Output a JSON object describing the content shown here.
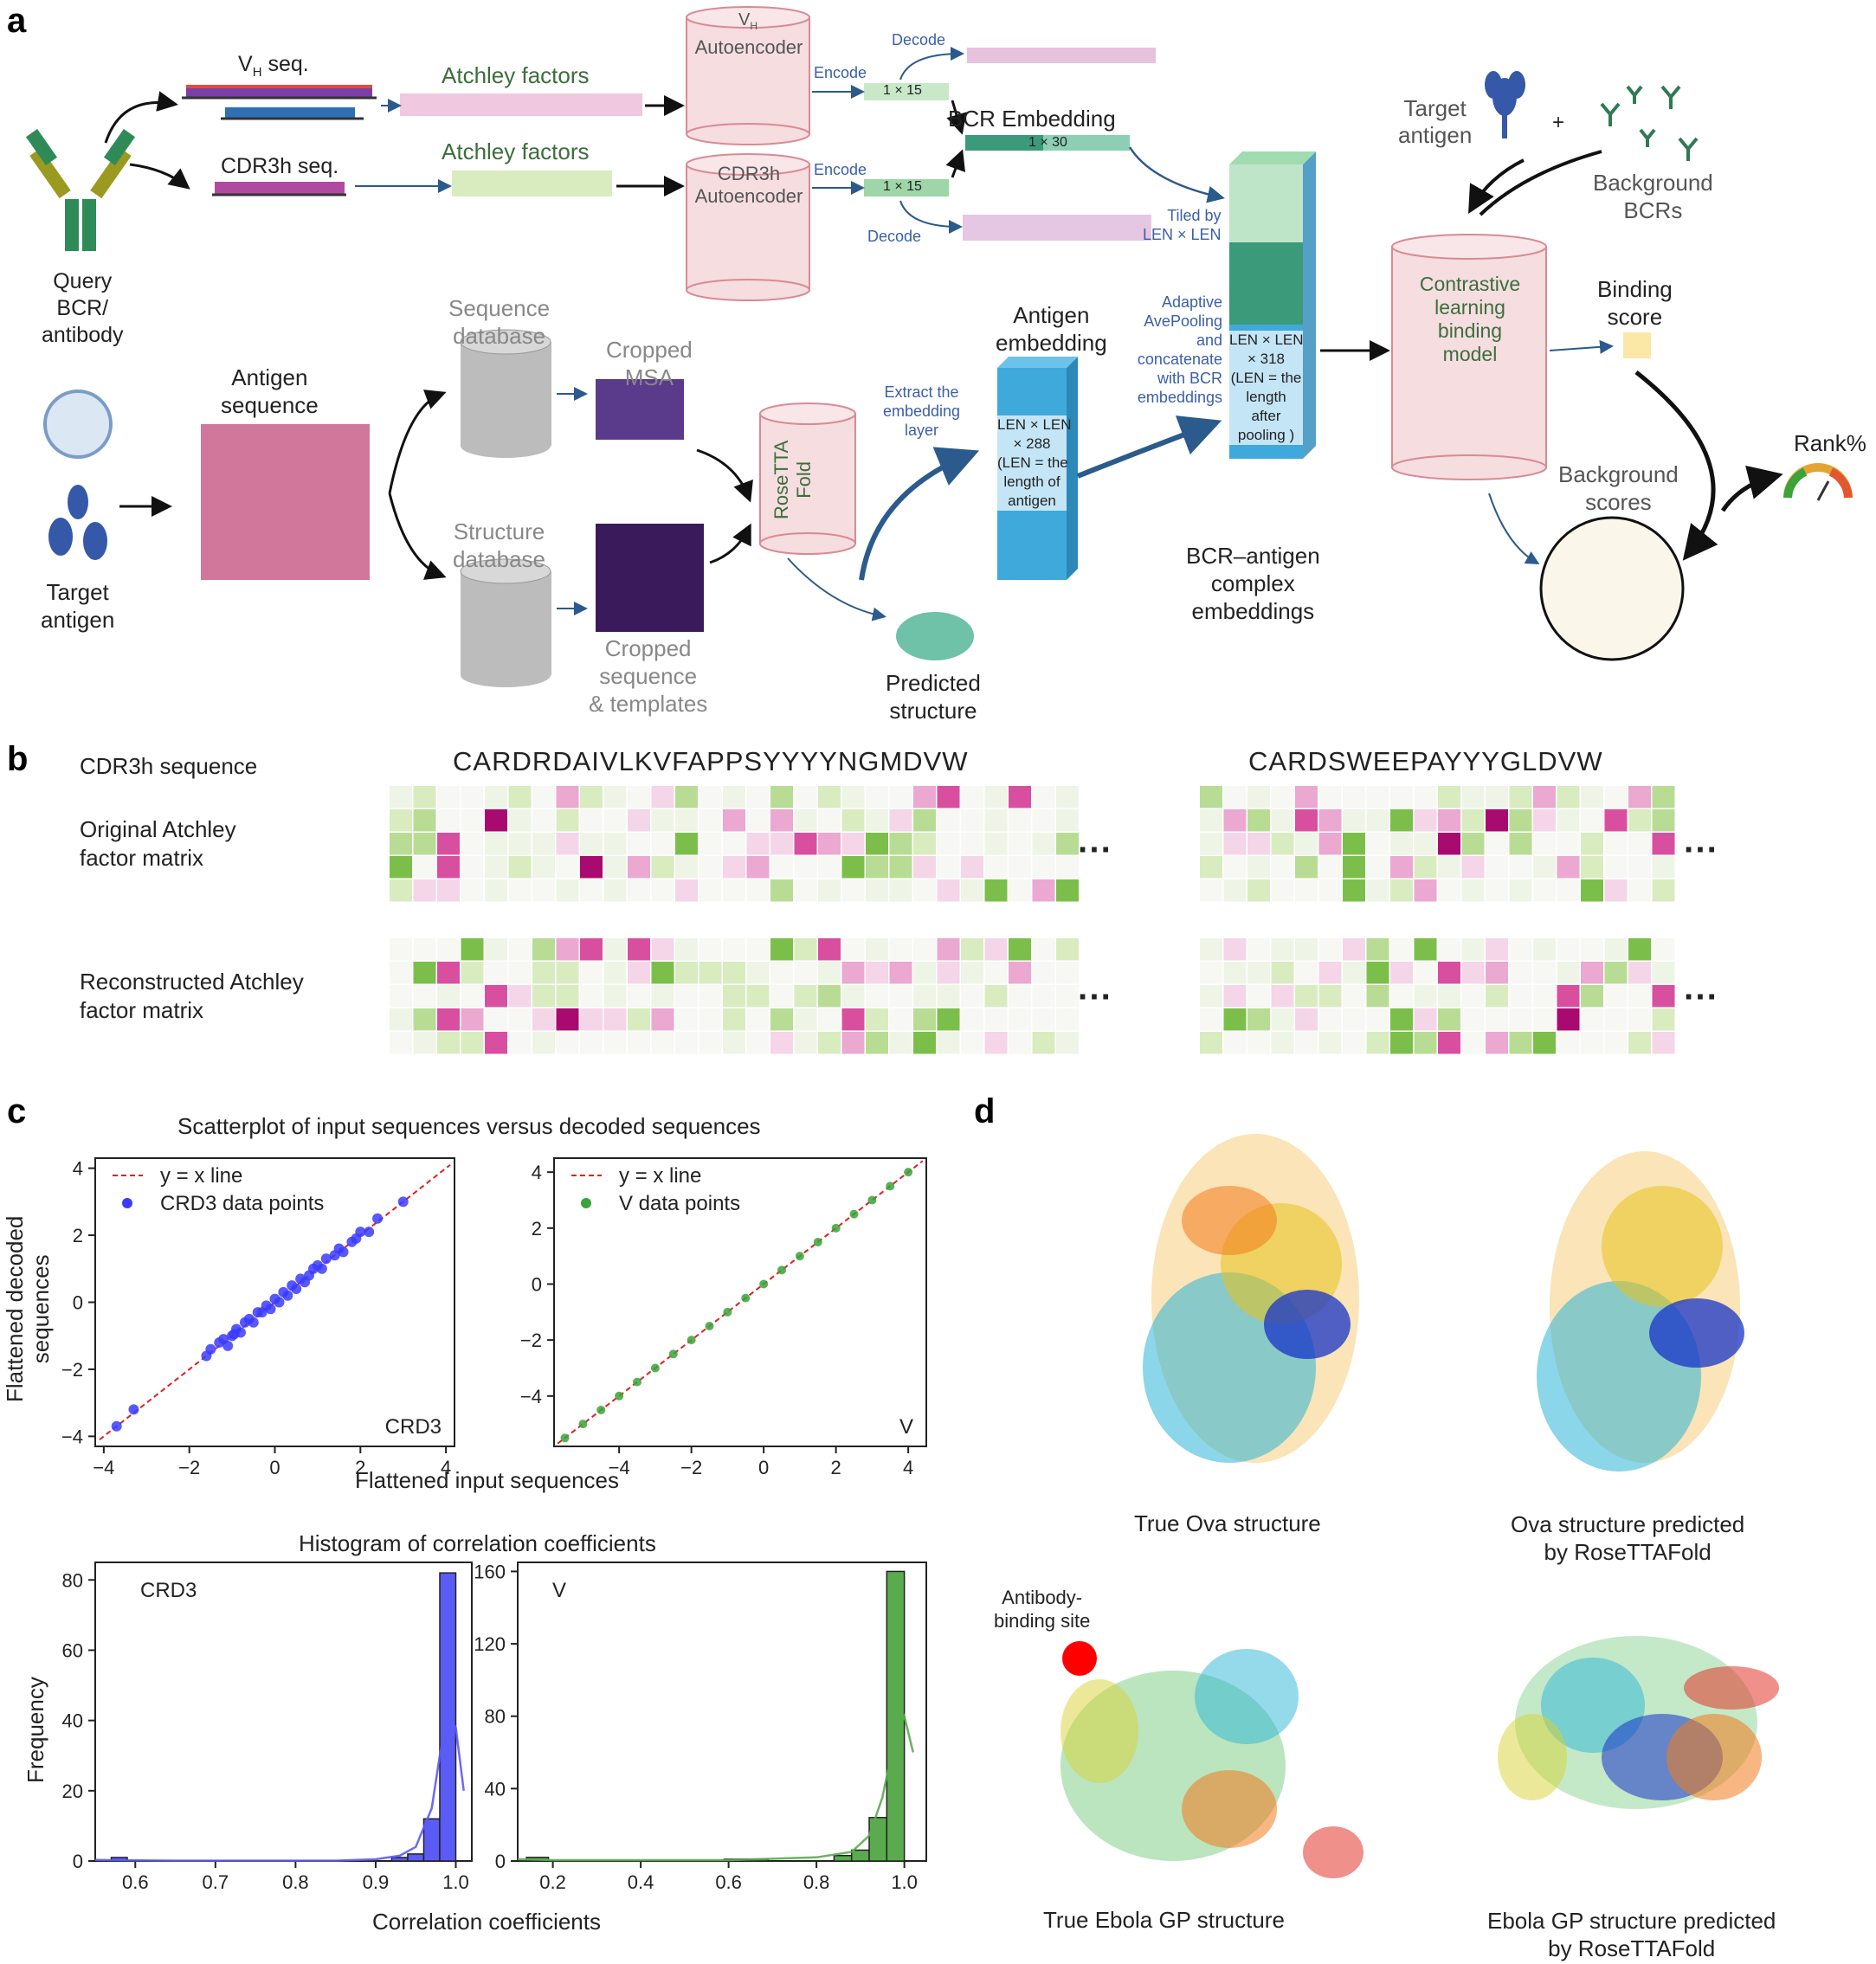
{
  "panels": {
    "a": "a",
    "b": "b",
    "c": "c",
    "d": "d"
  },
  "panel_a": {
    "query_label": "Query\nBCR/\nantibody",
    "vh_seq_label": "V",
    "vh_seq_sub": "H",
    "vh_seq_suffix": " seq.",
    "cdr3h_seq_label": "CDR3h seq.",
    "atchley_1": "Atchley factors",
    "atchley_2": "Atchley factors",
    "vh_auto_top": "V",
    "vh_auto_sub": "H",
    "vh_auto_label": "Autoencoder",
    "cdr3h_auto_label": "CDR3h\nAutoencoder",
    "encode_1": "Encode",
    "encode_2": "Encode",
    "decode_1": "Decode",
    "decode_2": "Decode",
    "dim_1x15_a": "1 × 15",
    "dim_1x15_b": "1 × 15",
    "bcr_embedding": "BCR Embedding",
    "dim_1x30": "1 × 30",
    "tiled_label": "Tiled by\nLEN × LEN",
    "target_antigen_right": "Target\nantigen",
    "background_bcrs": "Background\nBCRs",
    "contrastive_label": "Contrastive\nlearning\nbinding\nmodel",
    "binding_score": "Binding\nscore",
    "rank": "Rank%",
    "background_scores": "Background\nscores",
    "antigen_sequence": "Antigen\nsequence",
    "target_antigen_left": "Target\nantigen",
    "sequence_db": "Sequence\ndatabase",
    "structure_db": "Structure\ndatabase",
    "cropped_msa": "Cropped\nMSA",
    "cropped_seq": "Cropped\nsequence\n& templates",
    "rosetta": "RoseTTA\nFold",
    "predicted_structure": "Predicted\nstructure",
    "extract_label": "Extract the\nembedding\nlayer",
    "antigen_embedding": "Antigen\nembedding",
    "antigen_dims": "LEN × LEN\n× 288\n(LEN = the\nlength of\nantigen",
    "adaptive_label": "Adaptive\nAvePooling\nand\nconcatenate\nwith BCR\nembeddings",
    "complex_dims": "LEN × LEN\n× 318\n(LEN = the\nlength\nafter\npooling )",
    "complex_label": "BCR–antigen\ncomplex\nembeddings"
  },
  "panel_b": {
    "cdr3h_label": "CDR3h sequence",
    "seq1": "CARDRDAIVLKVFAPPSYYYYNGMDVW",
    "seq2": "CARDSWEEPAYYYGLDVW",
    "original_label": "Original Atchley\nfactor matrix",
    "reconstructed_label": "Reconstructed Atchley\nfactor matrix",
    "ellipsis": "···"
  },
  "panel_c": {
    "scatter_title": "Scatterplot of input sequences versus decoded sequences",
    "scatter_ylabel": "Flattened decoded\nsequences",
    "scatter_xlabel": "Flattened input sequences",
    "hist_title": "Histogram of correlation coefficients",
    "hist_ylabel": "Frequency",
    "hist_xlabel": "Correlation coefficients"
  },
  "chart_data": [
    {
      "type": "scatter",
      "panel_label": "CRD3",
      "legend": [
        "y = x line",
        "CRD3 data points"
      ],
      "xlim": [
        -4.2,
        4.2
      ],
      "ylim": [
        -4.3,
        4.3
      ],
      "xticks": [
        -4,
        -2,
        0,
        2,
        4
      ],
      "yticks": [
        -4,
        -2,
        0,
        2,
        4
      ],
      "color": "#3b3bff",
      "points": [
        [
          -3.7,
          -3.7
        ],
        [
          -3.3,
          -3.2
        ],
        [
          -1.6,
          -1.6
        ],
        [
          -1.5,
          -1.4
        ],
        [
          -1.2,
          -1.1
        ],
        [
          -1.0,
          -1.0
        ],
        [
          -0.9,
          -0.8
        ],
        [
          -0.8,
          -0.9
        ],
        [
          -0.6,
          -0.5
        ],
        [
          -0.5,
          -0.6
        ],
        [
          -0.4,
          -0.3
        ],
        [
          -0.3,
          -0.3
        ],
        [
          -0.2,
          -0.1
        ],
        [
          -0.1,
          -0.2
        ],
        [
          0.0,
          0.1
        ],
        [
          0.1,
          0.0
        ],
        [
          0.2,
          0.3
        ],
        [
          0.3,
          0.2
        ],
        [
          0.5,
          0.4
        ],
        [
          0.6,
          0.7
        ],
        [
          0.8,
          0.8
        ],
        [
          0.9,
          1.0
        ],
        [
          1.1,
          1.0
        ],
        [
          1.2,
          1.3
        ],
        [
          1.4,
          1.4
        ],
        [
          1.6,
          1.5
        ],
        [
          1.8,
          1.8
        ],
        [
          2.0,
          2.1
        ],
        [
          2.2,
          2.1
        ],
        [
          2.4,
          2.5
        ],
        [
          3.0,
          3.0
        ],
        [
          -1.3,
          -1.2
        ],
        [
          -0.7,
          -0.6
        ],
        [
          0.4,
          0.5
        ],
        [
          1.0,
          1.1
        ],
        [
          1.5,
          1.6
        ],
        [
          -1.1,
          -1.3
        ],
        [
          -0.95,
          -0.95
        ],
        [
          0.7,
          0.6
        ],
        [
          1.9,
          1.9
        ]
      ]
    },
    {
      "type": "scatter",
      "panel_label": "V",
      "legend": [
        "y = x line",
        "V data points"
      ],
      "xlim": [
        -5.8,
        4.5
      ],
      "ylim": [
        -5.8,
        4.5
      ],
      "xticks": [
        -4,
        -2,
        0,
        2,
        4
      ],
      "yticks": [
        -4,
        -2,
        0,
        2,
        4
      ],
      "color": "#3aa33a",
      "points": [
        [
          -5.5,
          -5.5
        ],
        [
          -5.0,
          -5.0
        ],
        [
          -4.5,
          -4.5
        ],
        [
          -4.0,
          -4.0
        ],
        [
          -3.5,
          -3.5
        ],
        [
          -3.0,
          -3.0
        ],
        [
          -2.5,
          -2.5
        ],
        [
          -2.0,
          -2.0
        ],
        [
          -1.5,
          -1.5
        ],
        [
          -1.0,
          -1.0
        ],
        [
          -0.5,
          -0.5
        ],
        [
          0.0,
          0.0
        ],
        [
          0.5,
          0.5
        ],
        [
          1.0,
          1.0
        ],
        [
          1.5,
          1.5
        ],
        [
          2.0,
          2.0
        ],
        [
          2.5,
          2.5
        ],
        [
          3.0,
          3.0
        ],
        [
          3.5,
          3.5
        ],
        [
          4.0,
          4.0
        ]
      ]
    },
    {
      "type": "bar",
      "panel_label": "CRD3",
      "xlim": [
        0.55,
        1.02
      ],
      "ylim": [
        0,
        85
      ],
      "xticks": [
        0.6,
        0.7,
        0.8,
        0.9,
        1.0
      ],
      "yticks": [
        0,
        20,
        40,
        60,
        80
      ],
      "color": "#5b5bf5",
      "bins": [
        [
          0.57,
          0.59,
          1
        ],
        [
          0.9,
          0.92,
          0
        ],
        [
          0.92,
          0.94,
          1
        ],
        [
          0.94,
          0.96,
          2
        ],
        [
          0.96,
          0.98,
          12
        ],
        [
          0.98,
          1.0,
          82
        ]
      ],
      "kde": [
        [
          0.55,
          0.3
        ],
        [
          0.6,
          0.2
        ],
        [
          0.65,
          0.1
        ],
        [
          0.85,
          0.1
        ],
        [
          0.9,
          0.5
        ],
        [
          0.93,
          1.5
        ],
        [
          0.95,
          4
        ],
        [
          0.97,
          15
        ],
        [
          0.98,
          30
        ],
        [
          0.99,
          42
        ],
        [
          1.0,
          38
        ],
        [
          1.01,
          20
        ]
      ]
    },
    {
      "type": "bar",
      "panel_label": "V",
      "xlim": [
        0.12,
        1.05
      ],
      "ylim": [
        0,
        165
      ],
      "xticks": [
        0.2,
        0.4,
        0.6,
        0.8,
        1.0
      ],
      "yticks": [
        0,
        40,
        80,
        120,
        160
      ],
      "color": "#5aab4e",
      "bins": [
        [
          0.14,
          0.19,
          2
        ],
        [
          0.59,
          0.64,
          1
        ],
        [
          0.64,
          0.69,
          1
        ],
        [
          0.84,
          0.88,
          3
        ],
        [
          0.88,
          0.92,
          6
        ],
        [
          0.92,
          0.96,
          24
        ],
        [
          0.96,
          1.0,
          160
        ]
      ],
      "kde": [
        [
          0.12,
          1
        ],
        [
          0.2,
          0.5
        ],
        [
          0.6,
          0.5
        ],
        [
          0.8,
          2
        ],
        [
          0.88,
          5
        ],
        [
          0.92,
          14
        ],
        [
          0.95,
          35
        ],
        [
          0.98,
          70
        ],
        [
          1.0,
          80
        ],
        [
          1.02,
          60
        ]
      ]
    }
  ],
  "panel_d": {
    "true_ova": "True Ova structure",
    "pred_ova": "Ova structure predicted\nby RoseTTAFold",
    "antibody_site": "Antibody-\nbinding site",
    "true_ebola": "True Ebola GP structure",
    "pred_ebola": "Ebola GP structure predicted\nby RoseTTAFold"
  },
  "colors": {
    "pink_cyl": "#f5dde0",
    "pink_border": "#d98a94",
    "blue_arrow": "#2b5a8c",
    "embed_blue": "#3fa9dc",
    "embed_green": "#3a9a7a"
  }
}
